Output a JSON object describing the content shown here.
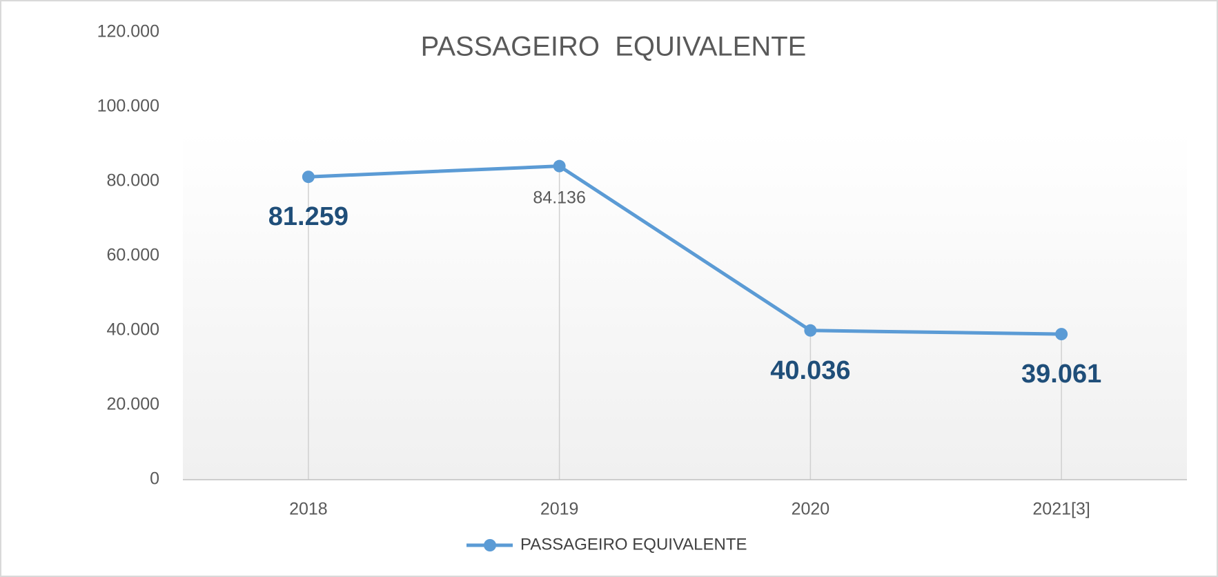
{
  "chart_data": {
    "type": "line",
    "title": "PASSAGEIRO  EQUIVALENTE",
    "categories": [
      "2018",
      "2019",
      "2020",
      "2021[3]"
    ],
    "series": [
      {
        "name": "PASSAGEIRO EQUIVALENTE",
        "color": "#5b9bd5",
        "values": [
          81259,
          84136,
          40036,
          39061
        ],
        "value_labels": [
          "81.259",
          "84.136",
          "40.036",
          "39.061"
        ]
      }
    ],
    "ylim": [
      0,
      120000
    ],
    "yticks": [
      0,
      {
        "value": 20000,
        "label": "20.000"
      },
      {
        "value": 40000,
        "label": "40.000"
      },
      {
        "value": 60000,
        "label": "60.000"
      },
      {
        "value": 80000,
        "label": "80.000"
      },
      {
        "value": 100000,
        "label": "100.000"
      },
      {
        "value": 120000,
        "label": "120.000"
      }
    ],
    "grid": false
  }
}
